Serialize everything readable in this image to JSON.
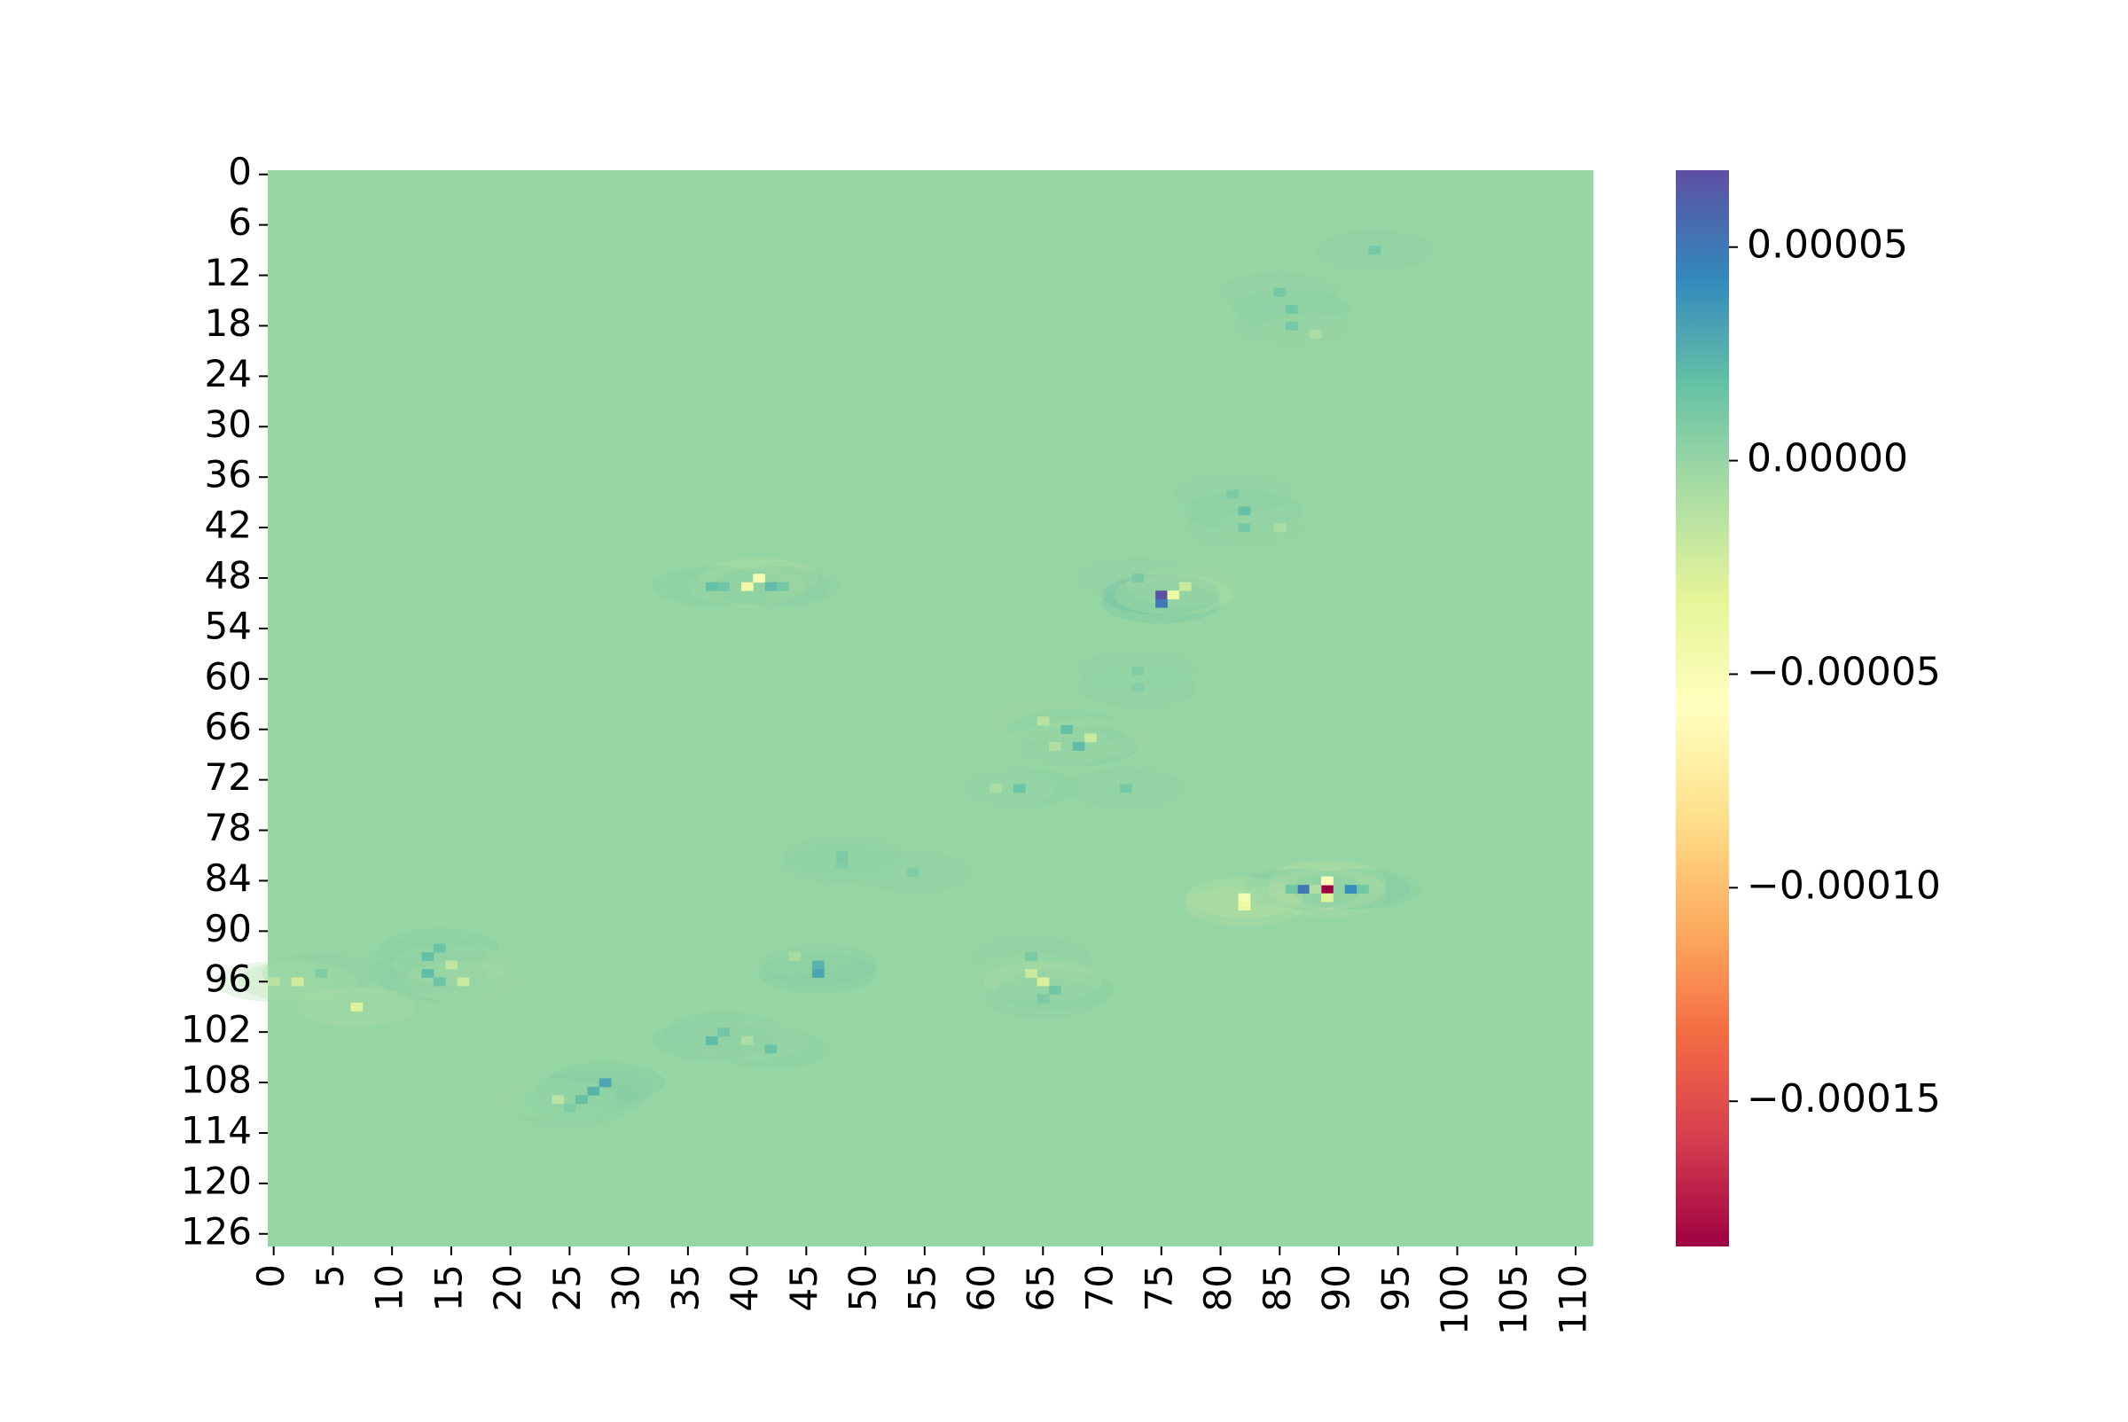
{
  "chart_data": {
    "type": "heatmap",
    "title": "",
    "xlabel": "",
    "ylabel": "",
    "rows": 128,
    "cols": 112,
    "x_tick_labels": [
      "0",
      "5",
      "10",
      "15",
      "20",
      "25",
      "30",
      "35",
      "40",
      "45",
      "50",
      "55",
      "60",
      "65",
      "70",
      "75",
      "80",
      "85",
      "90",
      "95",
      "100",
      "105",
      "110"
    ],
    "y_tick_labels": [
      "0",
      "6",
      "12",
      "18",
      "24",
      "30",
      "36",
      "42",
      "48",
      "54",
      "60",
      "66",
      "72",
      "78",
      "84",
      "90",
      "96",
      "102",
      "108",
      "114",
      "120",
      "126"
    ],
    "colormap": "Spectral",
    "colormap_stops": [
      "#9e0142",
      "#d53e4f",
      "#f46d43",
      "#fdae61",
      "#fee08b",
      "#ffffbf",
      "#e6f598",
      "#abdda4",
      "#66c2a5",
      "#3288bd",
      "#5e4fa2"
    ],
    "value_range": [
      -0.000184,
      6.8e-05
    ],
    "background_value": 0.0,
    "colorbar": {
      "ticks": [
        5e-05,
        0.0,
        -5e-05,
        -0.0001,
        -0.00015
      ],
      "tick_labels": [
        "0.00005",
        "0.00000",
        "−0.00005",
        "−0.00010",
        "−0.00015"
      ]
    },
    "features": [
      {
        "row": 9,
        "col": 93,
        "value": 1.2e-05
      },
      {
        "row": 14,
        "col": 85,
        "value": 1.2e-05
      },
      {
        "row": 16,
        "col": 86,
        "value": 1.4e-05
      },
      {
        "row": 18,
        "col": 86,
        "value": 1.2e-05
      },
      {
        "row": 19,
        "col": 88,
        "value": -8e-06
      },
      {
        "row": 38,
        "col": 81,
        "value": 1e-05
      },
      {
        "row": 40,
        "col": 82,
        "value": 1.8e-05
      },
      {
        "row": 42,
        "col": 82,
        "value": 1.2e-05
      },
      {
        "row": 42,
        "col": 85,
        "value": -8e-06
      },
      {
        "row": 48,
        "col": 41,
        "value": -4.8e-05
      },
      {
        "row": 49,
        "col": 40,
        "value": -4.4e-05
      },
      {
        "row": 49,
        "col": 37,
        "value": 1.8e-05
      },
      {
        "row": 49,
        "col": 38,
        "value": 1.4e-05
      },
      {
        "row": 49,
        "col": 42,
        "value": 2e-05
      },
      {
        "row": 49,
        "col": 43,
        "value": 1.2e-05
      },
      {
        "row": 48,
        "col": 73,
        "value": 1e-05
      },
      {
        "row": 50,
        "col": 75,
        "value": 6.8e-05
      },
      {
        "row": 51,
        "col": 75,
        "value": 5e-05
      },
      {
        "row": 50,
        "col": 76,
        "value": -4e-05
      },
      {
        "row": 49,
        "col": 77,
        "value": -2e-05
      },
      {
        "row": 59,
        "col": 73,
        "value": 8e-06
      },
      {
        "row": 61,
        "col": 73,
        "value": 6e-06
      },
      {
        "row": 65,
        "col": 65,
        "value": -1.4e-05
      },
      {
        "row": 66,
        "col": 67,
        "value": 1.8e-05
      },
      {
        "row": 67,
        "col": 69,
        "value": -2e-05
      },
      {
        "row": 68,
        "col": 68,
        "value": 2e-05
      },
      {
        "row": 68,
        "col": 66,
        "value": -1e-05
      },
      {
        "row": 73,
        "col": 63,
        "value": 1.6e-05
      },
      {
        "row": 73,
        "col": 61,
        "value": -8e-06
      },
      {
        "row": 73,
        "col": 72,
        "value": 1.2e-05
      },
      {
        "row": 81,
        "col": 48,
        "value": 1e-05
      },
      {
        "row": 82,
        "col": 48,
        "value": 8e-06
      },
      {
        "row": 83,
        "col": 54,
        "value": 8e-06
      },
      {
        "row": 85,
        "col": 89,
        "value": -0.000184
      },
      {
        "row": 84,
        "col": 89,
        "value": -6e-05
      },
      {
        "row": 86,
        "col": 89,
        "value": -3e-05
      },
      {
        "row": 85,
        "col": 87,
        "value": 5e-05
      },
      {
        "row": 85,
        "col": 91,
        "value": 4e-05
      },
      {
        "row": 85,
        "col": 86,
        "value": 1.4e-05
      },
      {
        "row": 85,
        "col": 92,
        "value": 1.4e-05
      },
      {
        "row": 86,
        "col": 82,
        "value": -5e-05
      },
      {
        "row": 87,
        "col": 82,
        "value": -4e-05
      },
      {
        "row": 85,
        "col": 88,
        "value": -1e-05
      },
      {
        "row": 93,
        "col": 13,
        "value": 1.8e-05
      },
      {
        "row": 92,
        "col": 14,
        "value": 1.6e-05
      },
      {
        "row": 95,
        "col": 13,
        "value": 2e-05
      },
      {
        "row": 96,
        "col": 14,
        "value": 1.6e-05
      },
      {
        "row": 94,
        "col": 15,
        "value": -1.6e-05
      },
      {
        "row": 96,
        "col": 16,
        "value": -2e-05
      },
      {
        "row": 96,
        "col": 0,
        "value": -1.4e-05
      },
      {
        "row": 96,
        "col": 2,
        "value": -2.4e-05
      },
      {
        "row": 95,
        "col": 4,
        "value": 8e-06
      },
      {
        "row": 99,
        "col": 7,
        "value": -3e-05
      },
      {
        "row": 94,
        "col": 46,
        "value": 2.4e-05
      },
      {
        "row": 95,
        "col": 46,
        "value": 3e-05
      },
      {
        "row": 93,
        "col": 44,
        "value": -6e-06
      },
      {
        "row": 93,
        "col": 64,
        "value": 1e-05
      },
      {
        "row": 95,
        "col": 64,
        "value": -2e-05
      },
      {
        "row": 96,
        "col": 65,
        "value": -2.8e-05
      },
      {
        "row": 97,
        "col": 66,
        "value": 1.4e-05
      },
      {
        "row": 98,
        "col": 65,
        "value": 1e-05
      },
      {
        "row": 103,
        "col": 37,
        "value": 2e-05
      },
      {
        "row": 102,
        "col": 38,
        "value": 1.4e-05
      },
      {
        "row": 104,
        "col": 42,
        "value": 1.6e-05
      },
      {
        "row": 103,
        "col": 40,
        "value": -8e-06
      },
      {
        "row": 108,
        "col": 28,
        "value": 3e-05
      },
      {
        "row": 109,
        "col": 27,
        "value": 2.4e-05
      },
      {
        "row": 110,
        "col": 26,
        "value": 1.8e-05
      },
      {
        "row": 110,
        "col": 24,
        "value": -1.4e-05
      },
      {
        "row": 111,
        "col": 25,
        "value": 8e-06
      }
    ]
  }
}
